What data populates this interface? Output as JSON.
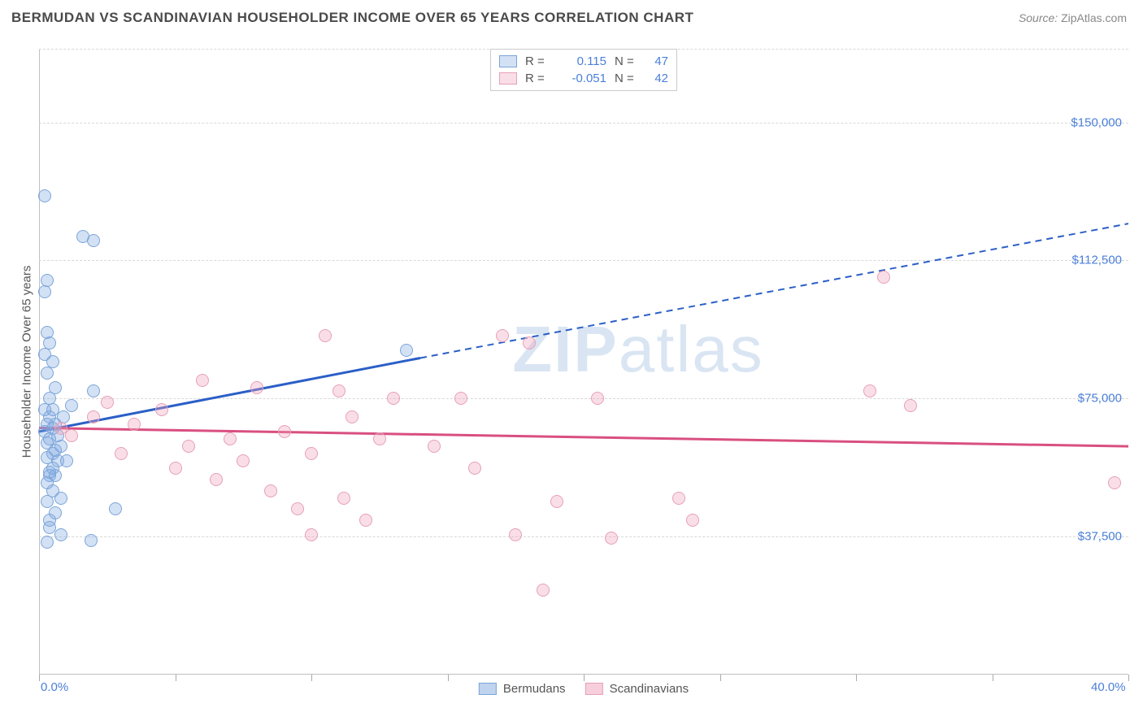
{
  "header": {
    "title": "BERMUDAN VS SCANDINAVIAN HOUSEHOLDER INCOME OVER 65 YEARS CORRELATION CHART",
    "source_label": "Source:",
    "source_name": "ZipAtlas.com"
  },
  "chart": {
    "type": "scatter",
    "y_axis_label": "Householder Income Over 65 years",
    "xlim": [
      0,
      40
    ],
    "ylim": [
      0,
      170000
    ],
    "x_ticks_major": [
      0,
      5,
      10,
      15,
      20,
      25,
      30,
      35,
      40
    ],
    "x_tick_labels": {
      "0": "0.0%",
      "40": "40.0%"
    },
    "y_gridlines": [
      37500,
      75000,
      112500,
      150000,
      170000
    ],
    "y_tick_labels": {
      "37500": "$37,500",
      "75000": "$75,000",
      "112500": "$112,500",
      "150000": "$150,000"
    },
    "background_color": "#ffffff",
    "grid_color": "#d8d8d8",
    "axis_color": "#c0c0c0",
    "tick_label_color": "#4a7fd8",
    "axis_label_color": "#555555",
    "watermark": {
      "text_bold": "ZIP",
      "text_rest": "atlas"
    },
    "series": [
      {
        "name": "Bermudans",
        "fill": "rgba(130,170,225,0.35)",
        "stroke": "#7ba5d8",
        "line_color": "#2b5fc7",
        "R": "0.115",
        "N": "47",
        "trend": {
          "x1": 0,
          "y1": 66000,
          "x2": 14,
          "y2": 86000,
          "x3": 40,
          "y3": 122500,
          "dash_after": 14
        },
        "points": [
          [
            0.2,
            66000
          ],
          [
            0.3,
            68000
          ],
          [
            0.4,
            70000
          ],
          [
            0.3,
            63000
          ],
          [
            0.5,
            60000
          ],
          [
            0.4,
            75000
          ],
          [
            0.6,
            78000
          ],
          [
            0.3,
            82000
          ],
          [
            0.5,
            85000
          ],
          [
            0.2,
            87000
          ],
          [
            0.4,
            90000
          ],
          [
            0.3,
            93000
          ],
          [
            0.8,
            62000
          ],
          [
            0.7,
            58000
          ],
          [
            0.4,
            54000
          ],
          [
            0.5,
            50000
          ],
          [
            0.3,
            47000
          ],
          [
            0.6,
            44000
          ],
          [
            0.4,
            42000
          ],
          [
            0.2,
            104000
          ],
          [
            0.3,
            107000
          ],
          [
            1.6,
            119000
          ],
          [
            2.0,
            118000
          ],
          [
            0.2,
            130000
          ],
          [
            0.6,
            54000
          ],
          [
            1.0,
            58000
          ],
          [
            0.8,
            48000
          ],
          [
            0.5,
            56000
          ],
          [
            0.4,
            40000
          ],
          [
            0.8,
            38000
          ],
          [
            0.3,
            36000
          ],
          [
            1.9,
            36500
          ],
          [
            0.5,
            72000
          ],
          [
            0.7,
            65000
          ],
          [
            2.0,
            77000
          ],
          [
            2.8,
            45000
          ],
          [
            1.2,
            73000
          ],
          [
            0.6,
            68000
          ],
          [
            0.9,
            70000
          ],
          [
            0.4,
            64000
          ],
          [
            0.2,
            72000
          ],
          [
            0.6,
            61000
          ],
          [
            0.3,
            59000
          ],
          [
            0.5,
            67000
          ],
          [
            0.4,
            55000
          ],
          [
            0.3,
            52000
          ],
          [
            13.5,
            88000
          ]
        ]
      },
      {
        "name": "Scandinavians",
        "fill": "rgba(240,160,185,0.35)",
        "stroke": "#e5a0b8",
        "line_color": "#d94f80",
        "R": "-0.051",
        "N": "42",
        "trend": {
          "x1": 0,
          "y1": 67000,
          "x2": 40,
          "y2": 62000
        },
        "points": [
          [
            0.8,
            67000
          ],
          [
            1.2,
            65000
          ],
          [
            2.0,
            70000
          ],
          [
            2.5,
            74000
          ],
          [
            3.0,
            60000
          ],
          [
            3.5,
            68000
          ],
          [
            4.5,
            72000
          ],
          [
            5.0,
            56000
          ],
          [
            5.5,
            62000
          ],
          [
            6.0,
            80000
          ],
          [
            6.5,
            53000
          ],
          [
            7.0,
            64000
          ],
          [
            7.5,
            58000
          ],
          [
            8.0,
            78000
          ],
          [
            8.5,
            50000
          ],
          [
            9.0,
            66000
          ],
          [
            9.5,
            45000
          ],
          [
            10.0,
            60000
          ],
          [
            10.5,
            92000
          ],
          [
            11.0,
            77000
          ],
          [
            11.2,
            48000
          ],
          [
            11.5,
            70000
          ],
          [
            12.0,
            42000
          ],
          [
            12.5,
            64000
          ],
          [
            13.0,
            75000
          ],
          [
            14.5,
            62000
          ],
          [
            15.5,
            75000
          ],
          [
            16.0,
            56000
          ],
          [
            17.0,
            92000
          ],
          [
            17.5,
            38000
          ],
          [
            18.0,
            90000
          ],
          [
            18.5,
            23000
          ],
          [
            19.0,
            47000
          ],
          [
            20.5,
            75000
          ],
          [
            21.0,
            37000
          ],
          [
            23.5,
            48000
          ],
          [
            24.0,
            42000
          ],
          [
            30.5,
            77000
          ],
          [
            31.0,
            108000
          ],
          [
            32.0,
            73000
          ],
          [
            39.5,
            52000
          ],
          [
            10.0,
            38000
          ]
        ]
      }
    ],
    "legend_top": {
      "r_label": "R =",
      "n_label": "N ="
    },
    "legend_bottom": [
      {
        "label": "Bermudans",
        "fill": "rgba(130,170,225,0.5)",
        "stroke": "#7ba5d8"
      },
      {
        "label": "Scandinavians",
        "fill": "rgba(240,160,185,0.5)",
        "stroke": "#e5a0b8"
      }
    ]
  }
}
